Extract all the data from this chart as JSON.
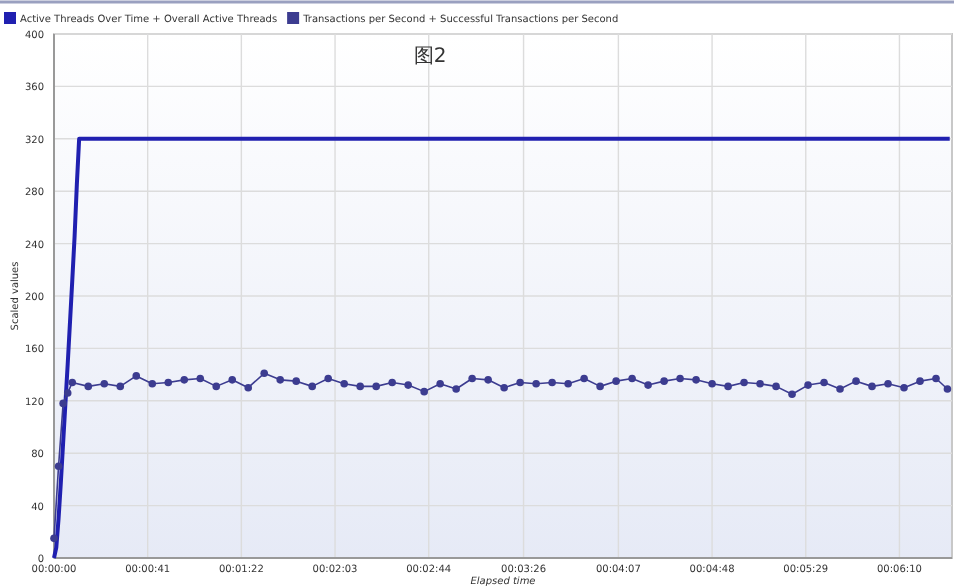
{
  "chart_data": {
    "type": "line",
    "title": "图2",
    "xlabel": "Elapsed time",
    "ylabel": "Scaled values",
    "xlim": [
      0,
      393
    ],
    "ylim": [
      0,
      400
    ],
    "yticks": [
      0,
      40,
      80,
      120,
      160,
      200,
      240,
      280,
      320,
      360,
      400
    ],
    "xticks": [
      {
        "value": 0,
        "label": "00:00:00"
      },
      {
        "value": 41,
        "label": "00:00:41"
      },
      {
        "value": 82,
        "label": "00:01:22"
      },
      {
        "value": 123,
        "label": "00:02:03"
      },
      {
        "value": 164,
        "label": "00:02:44"
      },
      {
        "value": 205.5,
        "label": "00:03:26"
      },
      {
        "value": 247,
        "label": "00:04:07"
      },
      {
        "value": 288,
        "label": "00:04:48"
      },
      {
        "value": 329,
        "label": "00:05:29"
      },
      {
        "value": 370,
        "label": "00:06:10"
      }
    ],
    "grid": true,
    "legend": "top",
    "series": [
      {
        "name": "Active Threads Over Time + Overall Active Threads",
        "color": "#2020b0",
        "marker": "none",
        "x": [
          0,
          1,
          2,
          3,
          4,
          5,
          6,
          7,
          8,
          9,
          10,
          11,
          392
        ],
        "values": [
          0,
          8,
          30,
          58,
          88,
          118,
          148,
          180,
          212,
          245,
          285,
          320,
          320
        ]
      },
      {
        "name": "Transactions per Second + Successful Transactions per Second",
        "color": "#3c3c90",
        "marker": "circle",
        "x": [
          0,
          2,
          4,
          6,
          8,
          15,
          22,
          29,
          36,
          43,
          50,
          57,
          64,
          71,
          78,
          85,
          92,
          99,
          106,
          113,
          120,
          127,
          134,
          141,
          148,
          155,
          162,
          169,
          176,
          183,
          190,
          197,
          204,
          211,
          218,
          225,
          232,
          239,
          246,
          253,
          260,
          267,
          274,
          281,
          288,
          295,
          302,
          309,
          316,
          323,
          330,
          337,
          344,
          351,
          358,
          365,
          372,
          379,
          386,
          391
        ],
        "values": [
          15,
          70,
          118,
          126,
          134,
          131,
          133,
          131,
          139,
          133,
          134,
          136,
          137,
          131,
          136,
          130,
          141,
          136,
          135,
          131,
          137,
          133,
          131,
          131,
          134,
          132,
          127,
          133,
          129,
          137,
          136,
          130,
          134,
          133,
          134,
          133,
          137,
          131,
          135,
          137,
          132,
          135,
          137,
          136,
          133,
          131,
          134,
          133,
          131,
          125,
          132,
          134,
          129,
          135,
          131,
          133,
          130,
          135,
          137,
          129
        ]
      }
    ]
  }
}
